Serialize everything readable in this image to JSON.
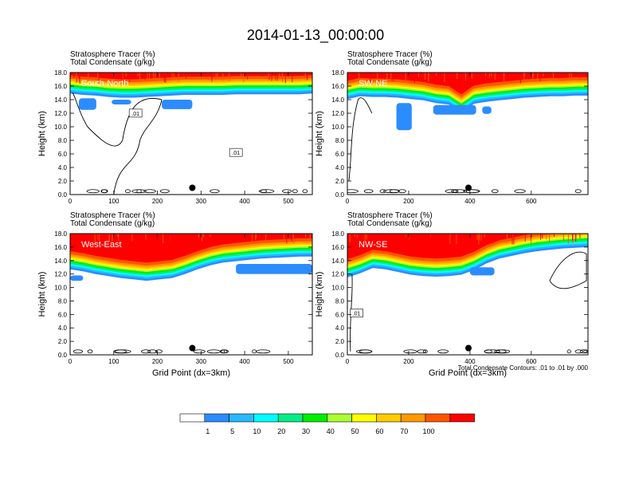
{
  "title": "2014-01-13_00:00:00",
  "colors": {
    "levels": [
      "#ffffff",
      "#2b8cff",
      "#29b8ff",
      "#00ffff",
      "#00ee88",
      "#00ee00",
      "#aaff33",
      "#ffff00",
      "#ffcc00",
      "#ff9900",
      "#ff5500",
      "#ff0000"
    ],
    "contour": "#000000"
  },
  "colorbar": {
    "labels": [
      "1",
      "5",
      "10",
      "20",
      "30",
      "40",
      "50",
      "60",
      "70",
      "100"
    ]
  },
  "contour_note": "Total Condensate Contours: .01 to .01 by .000",
  "chart_data": [
    {
      "type": "heatmap",
      "name": "South-North",
      "label1": "Stratosphere Tracer   (%)",
      "label2": "Total Condensate   (g/kg)",
      "ylabel": "Height (km)",
      "xlabel": "",
      "xlim": [
        0,
        555
      ],
      "ylim": [
        0,
        18
      ],
      "xticks": [
        "0",
        "100",
        "200",
        "300",
        "400",
        "500"
      ],
      "yticks": [
        "0.0",
        "2.0",
        "4.0",
        "6.0",
        "8.0",
        "10.0",
        "12.0",
        "14.0",
        "16.0",
        "18.0"
      ],
      "marker_x": 280,
      "marker_y": 1.0,
      "base_tropopause": [
        15.8,
        15.6,
        15.5,
        15.3,
        15.2,
        15.2,
        15.3,
        15.4,
        15.5,
        15.6,
        15.6,
        15.6,
        15.6,
        15.7,
        15.7,
        15.7,
        15.7,
        15.7,
        15.7,
        15.8
      ],
      "blue_blobs": [
        [
          20,
          14.2,
          60,
          12.5
        ],
        [
          95,
          14.0,
          140,
          13.3
        ],
        [
          210,
          14.0,
          280,
          12.6
        ]
      ],
      "contour_labels": [
        {
          "x": 150,
          "y": 11.9,
          "text": ".01"
        },
        {
          "x": 380,
          "y": 6.1,
          "text": ".01"
        }
      ]
    },
    {
      "type": "heatmap",
      "name": "SW-NE",
      "label1": "Stratosphere Tracer   (%)",
      "label2": "Total Condensate   (g/kg)",
      "ylabel": "Height (km)",
      "xlabel": "",
      "xlim": [
        0,
        785
      ],
      "ylim": [
        0,
        18
      ],
      "xticks": [
        "0",
        "200",
        "400",
        "600"
      ],
      "yticks": [
        "0.0",
        "2.0",
        "4.0",
        "6.0",
        "8.0",
        "10.0",
        "12.0",
        "14.0",
        "16.0",
        "18.0"
      ],
      "marker_x": 395,
      "marker_y": 1.0,
      "base_tropopause": [
        15.0,
        15.4,
        15.3,
        15.3,
        15.2,
        15.0,
        14.8,
        14.4,
        14.2,
        13.0,
        14.3,
        14.6,
        14.8,
        15.0,
        15.2,
        15.3,
        15.4,
        15.4,
        15.5,
        15.5
      ],
      "blue_blobs": [
        [
          160,
          13.5,
          210,
          9.5
        ],
        [
          280,
          13.2,
          420,
          11.8
        ],
        [
          440,
          13.0,
          470,
          11.9
        ]
      ],
      "contour_labels": []
    },
    {
      "type": "heatmap",
      "name": "West-East",
      "label1": "Stratosphere Tracer   (%)",
      "label2": "Total Condensate   (g/kg)",
      "ylabel": "Height (km)",
      "xlabel": "Grid Point (dx=3km)",
      "xlim": [
        0,
        555
      ],
      "ylim": [
        0,
        18
      ],
      "xticks": [
        "0",
        "100",
        "200",
        "300",
        "400",
        "500"
      ],
      "yticks": [
        "0.0",
        "2.0",
        "4.0",
        "6.0",
        "8.0",
        "10.0",
        "12.0",
        "14.0",
        "16.0",
        "18.0"
      ],
      "marker_x": 280,
      "marker_y": 1.0,
      "base_tropopause": [
        13.6,
        13.3,
        12.9,
        12.6,
        12.3,
        12.1,
        11.9,
        12.1,
        12.3,
        12.9,
        13.6,
        14.2,
        14.6,
        14.8,
        15.0,
        15.2,
        15.3,
        15.4,
        15.5,
        15.5
      ],
      "blue_blobs": [
        [
          0,
          11.8,
          30,
          11.0
        ],
        [
          380,
          13.5,
          555,
          12.0
        ]
      ],
      "contour_labels": []
    },
    {
      "type": "heatmap",
      "name": "NW-SE",
      "label1": "Stratosphere Tracer   (%)",
      "label2": "Total Condensate   (g/kg)",
      "ylabel": "Height (km)",
      "xlabel": "Grid Point (dx=3km)",
      "xlim": [
        0,
        785
      ],
      "ylim": [
        0,
        18
      ],
      "xticks": [
        "0",
        "200",
        "400",
        "600"
      ],
      "yticks": [
        "0.0",
        "2.0",
        "4.0",
        "6.0",
        "8.0",
        "10.0",
        "12.0",
        "14.0",
        "16.0",
        "18.0"
      ],
      "marker_x": 395,
      "marker_y": 1.0,
      "base_tropopause": [
        12.4,
        13.0,
        13.8,
        13.6,
        13.2,
        12.8,
        12.6,
        12.5,
        12.6,
        12.8,
        13.5,
        14.5,
        15.2,
        15.6,
        16.0,
        16.3,
        16.5,
        16.7,
        16.8,
        16.9
      ],
      "blue_blobs": [
        [
          400,
          13.0,
          480,
          11.8
        ]
      ],
      "contour_labels": [
        {
          "x": 30,
          "y": 6.1,
          "text": ".01"
        }
      ]
    }
  ]
}
